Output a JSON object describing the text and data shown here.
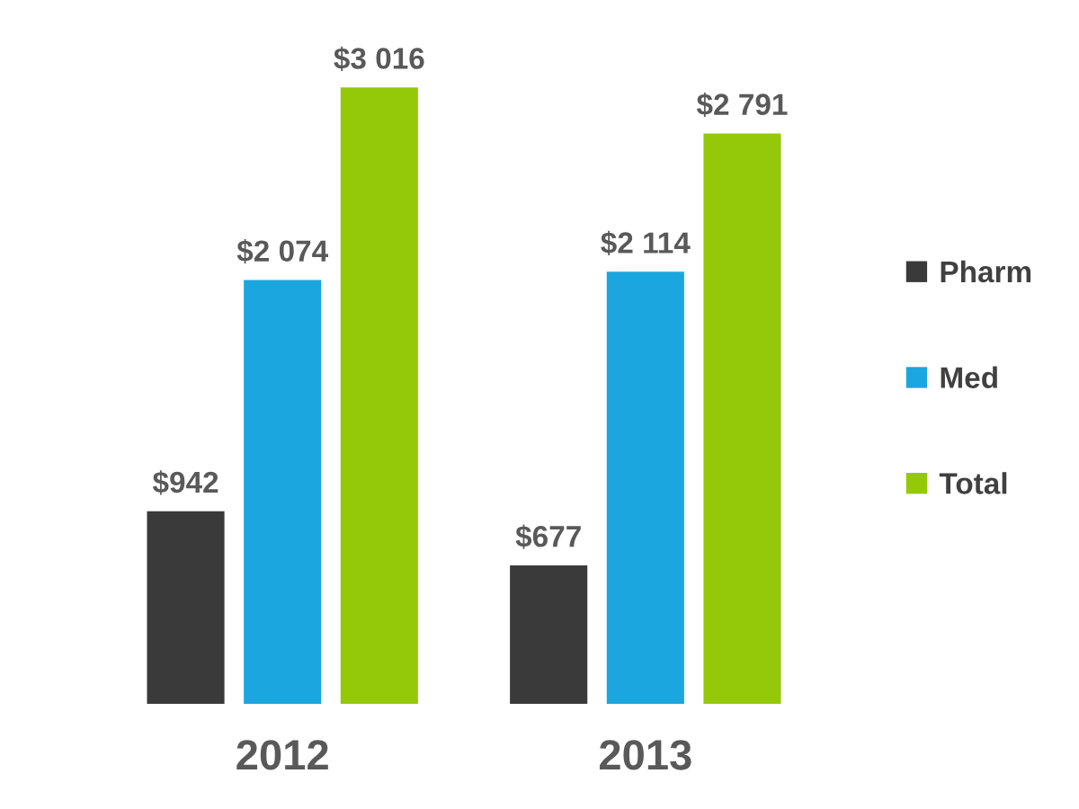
{
  "chart_data": {
    "type": "bar",
    "categories": [
      "2012",
      "2013"
    ],
    "series": [
      {
        "name": "Pharm",
        "color": "#3a3a3a",
        "values": [
          942,
          677
        ],
        "value_labels": [
          "$942",
          "$677"
        ]
      },
      {
        "name": "Med",
        "color": "#1ba6df",
        "values": [
          2074,
          2114
        ],
        "value_labels": [
          "$2 074",
          "$2 114"
        ]
      },
      {
        "name": "Total",
        "color": "#94c90a",
        "values": [
          3016,
          2791
        ],
        "value_labels": [
          "$3 016",
          "$2 791"
        ]
      }
    ],
    "legend": "right",
    "grid": false,
    "tick_labels": "x"
  }
}
